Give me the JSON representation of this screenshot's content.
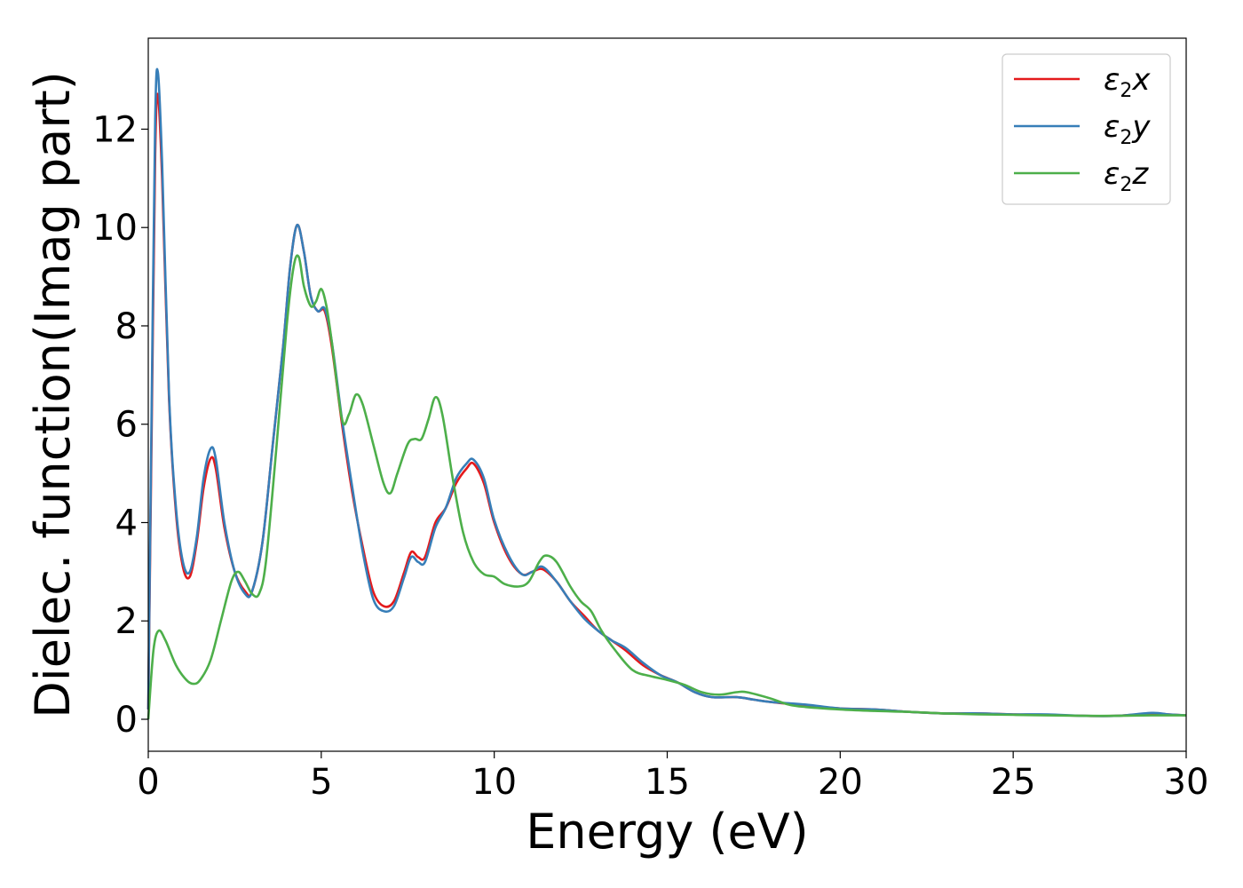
{
  "chart_data": {
    "type": "line",
    "title": "",
    "xlabel": "Energy (eV)",
    "ylabel": "Dielec. function(Imag part)",
    "xlim": [
      0,
      30
    ],
    "ylim": [
      -0.65,
      13.85
    ],
    "xticks": [
      0,
      5,
      10,
      15,
      20,
      25,
      30
    ],
    "yticks": [
      0,
      2,
      4,
      6,
      8,
      10,
      12
    ],
    "grid": false,
    "legend_position": "top-right",
    "series": [
      {
        "name": "ε2x",
        "legend": {
          "base": "ε",
          "sub": "2",
          "var": "x"
        },
        "color": "#e41a1c",
        "points": [
          [
            0,
            0.2
          ],
          [
            0.1,
            6.0
          ],
          [
            0.2,
            11.5
          ],
          [
            0.28,
            12.7
          ],
          [
            0.4,
            11.0
          ],
          [
            0.6,
            6.5
          ],
          [
            0.8,
            4.2
          ],
          [
            1.0,
            3.1
          ],
          [
            1.2,
            2.9
          ],
          [
            1.4,
            3.6
          ],
          [
            1.6,
            4.7
          ],
          [
            1.8,
            5.3
          ],
          [
            1.95,
            5.1
          ],
          [
            2.2,
            3.9
          ],
          [
            2.5,
            3.0
          ],
          [
            2.8,
            2.6
          ],
          [
            3.0,
            2.6
          ],
          [
            3.3,
            3.6
          ],
          [
            3.6,
            5.6
          ],
          [
            3.9,
            7.6
          ],
          [
            4.1,
            9.2
          ],
          [
            4.3,
            10.05
          ],
          [
            4.5,
            9.5
          ],
          [
            4.7,
            8.6
          ],
          [
            4.9,
            8.3
          ],
          [
            5.1,
            8.3
          ],
          [
            5.3,
            7.6
          ],
          [
            5.6,
            6.0
          ],
          [
            5.9,
            4.6
          ],
          [
            6.2,
            3.5
          ],
          [
            6.5,
            2.6
          ],
          [
            6.8,
            2.3
          ],
          [
            7.1,
            2.4
          ],
          [
            7.4,
            3.0
          ],
          [
            7.6,
            3.4
          ],
          [
            7.8,
            3.3
          ],
          [
            8.0,
            3.3
          ],
          [
            8.3,
            4.0
          ],
          [
            8.6,
            4.3
          ],
          [
            8.9,
            4.8
          ],
          [
            9.2,
            5.1
          ],
          [
            9.4,
            5.2
          ],
          [
            9.7,
            4.8
          ],
          [
            10.0,
            4.0
          ],
          [
            10.4,
            3.3
          ],
          [
            10.8,
            2.95
          ],
          [
            11.1,
            3.0
          ],
          [
            11.4,
            3.05
          ],
          [
            11.8,
            2.8
          ],
          [
            12.2,
            2.4
          ],
          [
            12.6,
            2.1
          ],
          [
            13.0,
            1.8
          ],
          [
            13.4,
            1.6
          ],
          [
            13.8,
            1.4
          ],
          [
            14.3,
            1.1
          ],
          [
            14.8,
            0.9
          ],
          [
            15.3,
            0.75
          ],
          [
            15.8,
            0.55
          ],
          [
            16.3,
            0.45
          ],
          [
            17.0,
            0.45
          ],
          [
            17.5,
            0.4
          ],
          [
            18.0,
            0.35
          ],
          [
            19.0,
            0.28
          ],
          [
            20.0,
            0.22
          ],
          [
            21.0,
            0.2
          ],
          [
            22.0,
            0.15
          ],
          [
            23.0,
            0.12
          ],
          [
            24.0,
            0.12
          ],
          [
            25.0,
            0.1
          ],
          [
            26.0,
            0.09
          ],
          [
            27.0,
            0.07
          ],
          [
            28.0,
            0.07
          ],
          [
            29.0,
            0.12
          ],
          [
            29.5,
            0.1
          ],
          [
            30.0,
            0.08
          ]
        ]
      },
      {
        "name": "ε2y",
        "legend": {
          "base": "ε",
          "sub": "2",
          "var": "y"
        },
        "color": "#377eb8",
        "points": [
          [
            0,
            0.2
          ],
          [
            0.1,
            6.5
          ],
          [
            0.2,
            12.2
          ],
          [
            0.28,
            13.15
          ],
          [
            0.4,
            11.3
          ],
          [
            0.6,
            6.6
          ],
          [
            0.8,
            4.3
          ],
          [
            1.0,
            3.2
          ],
          [
            1.2,
            3.0
          ],
          [
            1.4,
            3.7
          ],
          [
            1.6,
            4.9
          ],
          [
            1.8,
            5.5
          ],
          [
            1.95,
            5.3
          ],
          [
            2.2,
            4.0
          ],
          [
            2.5,
            3.0
          ],
          [
            2.8,
            2.55
          ],
          [
            3.0,
            2.6
          ],
          [
            3.3,
            3.6
          ],
          [
            3.6,
            5.6
          ],
          [
            3.9,
            7.6
          ],
          [
            4.1,
            9.2
          ],
          [
            4.3,
            10.05
          ],
          [
            4.5,
            9.5
          ],
          [
            4.7,
            8.6
          ],
          [
            4.9,
            8.3
          ],
          [
            5.1,
            8.35
          ],
          [
            5.3,
            7.7
          ],
          [
            5.6,
            6.1
          ],
          [
            5.9,
            4.7
          ],
          [
            6.2,
            3.4
          ],
          [
            6.5,
            2.45
          ],
          [
            6.8,
            2.2
          ],
          [
            7.1,
            2.3
          ],
          [
            7.4,
            2.9
          ],
          [
            7.6,
            3.3
          ],
          [
            7.8,
            3.2
          ],
          [
            8.0,
            3.2
          ],
          [
            8.3,
            3.9
          ],
          [
            8.6,
            4.3
          ],
          [
            8.9,
            4.9
          ],
          [
            9.2,
            5.2
          ],
          [
            9.4,
            5.28
          ],
          [
            9.7,
            4.9
          ],
          [
            10.0,
            4.05
          ],
          [
            10.4,
            3.35
          ],
          [
            10.8,
            2.95
          ],
          [
            11.1,
            3.0
          ],
          [
            11.4,
            3.1
          ],
          [
            11.8,
            2.8
          ],
          [
            12.2,
            2.4
          ],
          [
            12.6,
            2.05
          ],
          [
            13.0,
            1.8
          ],
          [
            13.4,
            1.6
          ],
          [
            13.8,
            1.45
          ],
          [
            14.3,
            1.15
          ],
          [
            14.8,
            0.9
          ],
          [
            15.3,
            0.75
          ],
          [
            15.8,
            0.55
          ],
          [
            16.3,
            0.45
          ],
          [
            17.0,
            0.45
          ],
          [
            17.5,
            0.4
          ],
          [
            18.0,
            0.35
          ],
          [
            19.0,
            0.3
          ],
          [
            20.0,
            0.22
          ],
          [
            21.0,
            0.2
          ],
          [
            22.0,
            0.15
          ],
          [
            23.0,
            0.12
          ],
          [
            24.0,
            0.12
          ],
          [
            25.0,
            0.1
          ],
          [
            26.0,
            0.1
          ],
          [
            27.0,
            0.07
          ],
          [
            28.0,
            0.07
          ],
          [
            29.0,
            0.13
          ],
          [
            29.5,
            0.1
          ],
          [
            30.0,
            0.08
          ]
        ]
      },
      {
        "name": "ε2z",
        "legend": {
          "base": "ε",
          "sub": "2",
          "var": "z"
        },
        "color": "#4daf4a",
        "points": [
          [
            0,
            0.0
          ],
          [
            0.15,
            1.4
          ],
          [
            0.3,
            1.8
          ],
          [
            0.5,
            1.6
          ],
          [
            0.8,
            1.1
          ],
          [
            1.1,
            0.8
          ],
          [
            1.3,
            0.72
          ],
          [
            1.5,
            0.8
          ],
          [
            1.8,
            1.2
          ],
          [
            2.1,
            2.0
          ],
          [
            2.4,
            2.8
          ],
          [
            2.6,
            3.0
          ],
          [
            2.8,
            2.8
          ],
          [
            3.0,
            2.55
          ],
          [
            3.2,
            2.55
          ],
          [
            3.4,
            3.2
          ],
          [
            3.7,
            5.5
          ],
          [
            4.0,
            8.0
          ],
          [
            4.2,
            9.2
          ],
          [
            4.35,
            9.4
          ],
          [
            4.5,
            8.8
          ],
          [
            4.7,
            8.4
          ],
          [
            4.85,
            8.5
          ],
          [
            5.0,
            8.75
          ],
          [
            5.15,
            8.4
          ],
          [
            5.3,
            7.7
          ],
          [
            5.6,
            6.1
          ],
          [
            5.8,
            6.2
          ],
          [
            6.0,
            6.6
          ],
          [
            6.2,
            6.4
          ],
          [
            6.5,
            5.6
          ],
          [
            6.8,
            4.8
          ],
          [
            7.0,
            4.6
          ],
          [
            7.2,
            5.0
          ],
          [
            7.5,
            5.6
          ],
          [
            7.7,
            5.7
          ],
          [
            7.9,
            5.7
          ],
          [
            8.1,
            6.1
          ],
          [
            8.3,
            6.55
          ],
          [
            8.5,
            6.2
          ],
          [
            8.8,
            4.9
          ],
          [
            9.1,
            3.8
          ],
          [
            9.4,
            3.2
          ],
          [
            9.7,
            2.95
          ],
          [
            10.0,
            2.9
          ],
          [
            10.3,
            2.75
          ],
          [
            10.7,
            2.7
          ],
          [
            11.0,
            2.8
          ],
          [
            11.3,
            3.2
          ],
          [
            11.5,
            3.33
          ],
          [
            11.8,
            3.2
          ],
          [
            12.2,
            2.7
          ],
          [
            12.5,
            2.4
          ],
          [
            12.8,
            2.2
          ],
          [
            13.1,
            1.8
          ],
          [
            13.5,
            1.4
          ],
          [
            14.0,
            1.0
          ],
          [
            14.5,
            0.88
          ],
          [
            15.0,
            0.8
          ],
          [
            15.5,
            0.7
          ],
          [
            16.0,
            0.55
          ],
          [
            16.5,
            0.5
          ],
          [
            17.0,
            0.55
          ],
          [
            17.3,
            0.55
          ],
          [
            18.0,
            0.42
          ],
          [
            18.5,
            0.3
          ],
          [
            19.0,
            0.25
          ],
          [
            20.0,
            0.2
          ],
          [
            21.0,
            0.17
          ],
          [
            22.0,
            0.15
          ],
          [
            23.0,
            0.12
          ],
          [
            24.0,
            0.1
          ],
          [
            25.0,
            0.09
          ],
          [
            26.0,
            0.08
          ],
          [
            27.0,
            0.07
          ],
          [
            28.0,
            0.07
          ],
          [
            29.0,
            0.08
          ],
          [
            30.0,
            0.08
          ]
        ]
      }
    ]
  }
}
